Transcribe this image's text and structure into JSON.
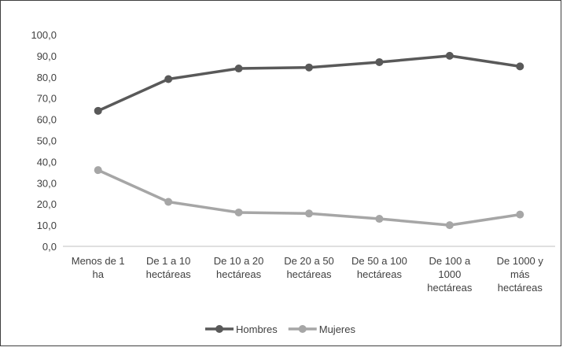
{
  "chart_data": {
    "type": "line",
    "categories": [
      [
        "Menos de 1",
        "ha"
      ],
      [
        "De 1 a 10",
        "hectáreas"
      ],
      [
        "De 10 a 20",
        "hectáreas"
      ],
      [
        "De 20 a 50",
        "hectáreas"
      ],
      [
        "De 50 a 100",
        "hectáreas"
      ],
      [
        "De 100 a",
        "1000",
        "hectáreas"
      ],
      [
        "De 1000 y",
        "más",
        "hectáreas"
      ]
    ],
    "series": [
      {
        "name": "Hombres",
        "values": [
          64.0,
          79.0,
          84.0,
          84.5,
          87.0,
          90.0,
          85.0
        ],
        "color": "#595959"
      },
      {
        "name": "Mujeres",
        "values": [
          36.0,
          21.0,
          16.0,
          15.5,
          13.0,
          10.0,
          15.0
        ],
        "color": "#a6a6a6"
      }
    ],
    "ylim": [
      0,
      100
    ],
    "yticks": [
      "0,0",
      "10,0",
      "20,0",
      "30,0",
      "40,0",
      "50,0",
      "60,0",
      "70,0",
      "80,0",
      "90,0",
      "100,0"
    ],
    "grid": false,
    "legend_position": "bottom",
    "title": "",
    "xlabel": "",
    "ylabel": ""
  }
}
